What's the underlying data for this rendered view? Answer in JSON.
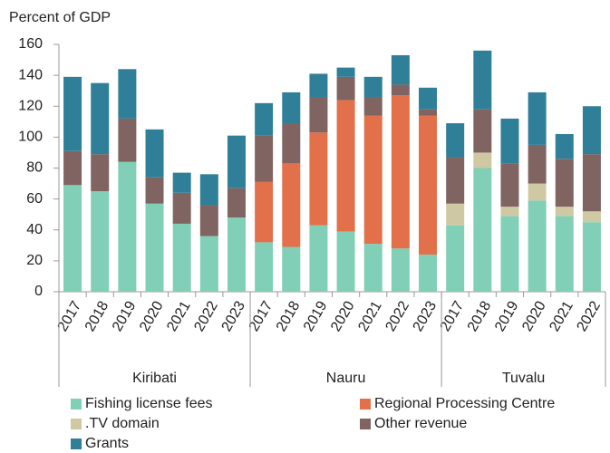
{
  "chart_data": {
    "type": "stacked_bar",
    "y_axis_label": "Percent of GDP",
    "categories": [
      "2017",
      "2018",
      "2019",
      "2020",
      "2021",
      "2022",
      "2023",
      "2017",
      "2018",
      "2019",
      "2020",
      "2021",
      "2022",
      "2023",
      "2017",
      "2018",
      "2019",
      "2020",
      "2021",
      "2022"
    ],
    "groups": [
      {
        "name": "Kiribati",
        "categories": [
          "2017",
          "2018",
          "2019",
          "2020",
          "2021",
          "2022",
          "2023"
        ]
      },
      {
        "name": "Nauru",
        "categories": [
          "2017",
          "2018",
          "2019",
          "2020",
          "2021",
          "2022",
          "2023"
        ]
      },
      {
        "name": "Tuvalu",
        "categories": [
          "2017",
          "2018",
          "2019",
          "2020",
          "2021",
          "2022"
        ]
      }
    ],
    "series": [
      {
        "name": "Fishing license fees",
        "color": "#80cfb6",
        "values": [
          69,
          65,
          84,
          57,
          44,
          36,
          48,
          32,
          29,
          43,
          39,
          31,
          28,
          24,
          43,
          80,
          49,
          59,
          49,
          45
        ]
      },
      {
        "name": "Regional Processing Centre",
        "color": "#e2704a",
        "values": [
          null,
          null,
          null,
          null,
          null,
          null,
          null,
          39,
          54,
          60,
          85,
          83,
          99,
          90,
          null,
          null,
          null,
          null,
          null,
          null
        ]
      },
      {
        "name": ".TV domain",
        "color": "#cfc9a3",
        "values": [
          null,
          null,
          null,
          null,
          null,
          null,
          null,
          null,
          null,
          null,
          null,
          null,
          null,
          null,
          14,
          10,
          6,
          11,
          6,
          7
        ]
      },
      {
        "name": "Other revenue",
        "color": "#7f6462",
        "values": [
          22,
          24,
          28,
          17,
          20,
          20,
          19,
          30,
          26,
          23,
          15,
          12,
          7,
          4,
          30,
          28,
          28,
          25,
          31,
          37
        ]
      },
      {
        "name": "Grants",
        "color": "#2e7f97",
        "values": [
          48,
          46,
          32,
          31,
          13,
          20,
          34,
          21,
          20,
          15,
          6,
          13,
          19,
          14,
          22,
          38,
          29,
          34,
          16,
          31
        ]
      }
    ],
    "ylim": [
      0,
      160
    ],
    "yticks": [
      0,
      20,
      40,
      60,
      80,
      100,
      120,
      140,
      160
    ],
    "grid": false
  }
}
